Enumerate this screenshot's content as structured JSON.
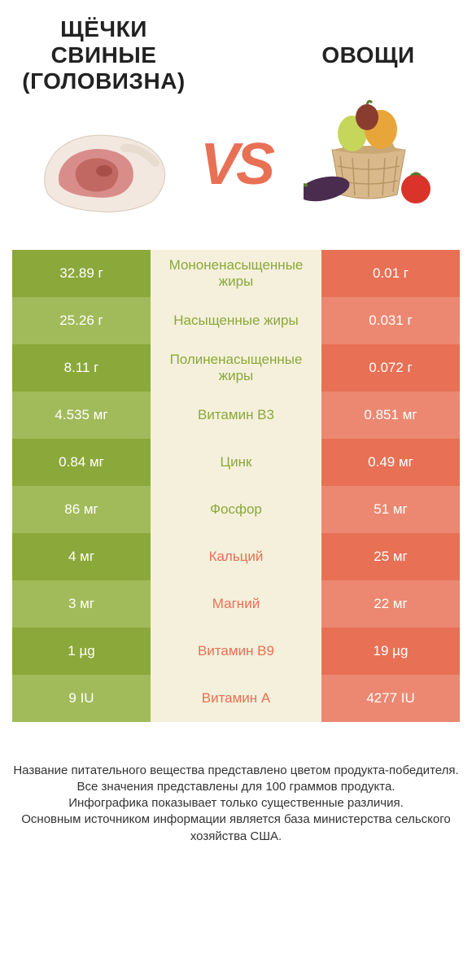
{
  "colors": {
    "left_primary": "#8ba83a",
    "left_secondary": "#a1bb5a",
    "right_primary": "#e87055",
    "right_secondary": "#ec8871",
    "mid_bg": "#f4f0db",
    "mid_text_left": "#8ba83a",
    "mid_text_right": "#e87055",
    "vs_color": "#e87055",
    "title_color": "#222222",
    "footer_color": "#333333"
  },
  "typography": {
    "title_fontsize": 28,
    "cell_fontsize": 17,
    "vs_fontsize": 72,
    "footer_fontsize": 15
  },
  "left_product": {
    "title": "ЩЁЧКИ СВИНЫЕ (ГОЛОВИЗНА)"
  },
  "right_product": {
    "title": "ОВОЩИ"
  },
  "vs_label": "VS",
  "rows": [
    {
      "left": "32.89 г",
      "mid": "Мононенасыщенные жиры",
      "right": "0.01 г",
      "winner": "left"
    },
    {
      "left": "25.26 г",
      "mid": "Насыщенные жиры",
      "right": "0.031 г",
      "winner": "left"
    },
    {
      "left": "8.11 г",
      "mid": "Полиненасыщенные жиры",
      "right": "0.072 г",
      "winner": "left"
    },
    {
      "left": "4.535 мг",
      "mid": "Витамин B3",
      "right": "0.851 мг",
      "winner": "left"
    },
    {
      "left": "0.84 мг",
      "mid": "Цинк",
      "right": "0.49 мг",
      "winner": "left"
    },
    {
      "left": "86 мг",
      "mid": "Фосфор",
      "right": "51 мг",
      "winner": "left"
    },
    {
      "left": "4 мг",
      "mid": "Кальций",
      "right": "25 мг",
      "winner": "right"
    },
    {
      "left": "3 мг",
      "mid": "Магний",
      "right": "22 мг",
      "winner": "right"
    },
    {
      "left": "1 µg",
      "mid": "Витамин B9",
      "right": "19 µg",
      "winner": "right"
    },
    {
      "left": "9 IU",
      "mid": "Витамин A",
      "right": "4277 IU",
      "winner": "right"
    }
  ],
  "footer_lines": [
    "Название питательного вещества представлено цветом продукта-победителя.",
    "Все значения представлены для 100 граммов продукта.",
    "Инфографика показывает только существенные различия.",
    "Основным источником информации является база министерства сельского хозяйства США."
  ]
}
